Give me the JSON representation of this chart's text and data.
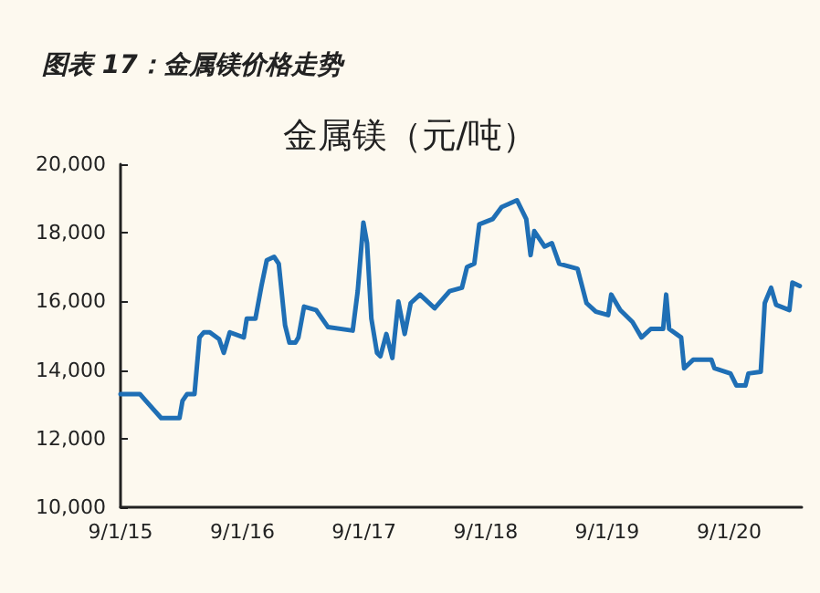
{
  "chart_data": {
    "type": "line",
    "title": "图表 17：金属镁价格走势",
    "subtitle": "金属镁（元/吨）",
    "x": [
      "2015-09-01",
      "2015-10-29",
      "2015-11-16",
      "2016-01-01",
      "2016-02-25",
      "2016-03-05",
      "2016-03-19",
      "2016-04-10",
      "2016-04-25",
      "2016-05-08",
      "2016-05-26",
      "2016-06-23",
      "2016-07-07",
      "2016-07-25",
      "2016-09-05",
      "2016-09-14",
      "2016-10-10",
      "2016-10-28",
      "2016-11-13",
      "2016-12-05",
      "2016-12-19",
      "2017-01-07",
      "2017-01-20",
      "2017-02-07",
      "2017-02-16",
      "2017-03-05",
      "2017-04-10",
      "2017-05-16",
      "2017-07-29",
      "2017-08-13",
      "2017-08-30",
      "2017-09-10",
      "2017-09-23",
      "2017-10-10",
      "2017-10-20",
      "2017-11-07",
      "2017-11-25",
      "2017-12-13",
      "2018-01-01",
      "2018-01-19",
      "2018-02-16",
      "2018-04-01",
      "2018-05-16",
      "2018-06-22",
      "2018-07-07",
      "2018-07-29",
      "2018-08-13",
      "2018-09-22",
      "2018-10-19",
      "2018-12-04",
      "2019-01-01",
      "2019-01-14",
      "2019-01-25",
      "2019-02-25",
      "2019-03-19",
      "2019-04-10",
      "2019-06-04",
      "2019-07-01",
      "2019-07-29",
      "2019-09-04",
      "2019-09-13",
      "2019-10-10",
      "2019-11-16",
      "2019-12-13",
      "2020-01-10",
      "2020-02-16",
      "2020-02-25",
      "2020-03-05",
      "2020-04-10",
      "2020-04-19",
      "2020-05-16",
      "2020-07-10",
      "2020-07-19",
      "2020-09-05",
      "2020-09-23",
      "2020-10-20",
      "2020-10-29",
      "2020-12-05",
      "2020-12-17",
      "2021-01-05",
      "2021-01-20",
      "2021-03-01",
      "2021-03-10",
      "2021-04-01"
    ],
    "series": [
      {
        "color": "#1f6fb5",
        "values": [
          13300,
          13300,
          13100,
          12600,
          12600,
          13100,
          13300,
          13300,
          14950,
          15100,
          15100,
          14900,
          14500,
          15100,
          14950,
          15500,
          15500,
          16450,
          17200,
          17300,
          17100,
          15300,
          14800,
          14800,
          14950,
          15850,
          15750,
          15250,
          15150,
          16300,
          18300,
          17700,
          15500,
          14500,
          14400,
          15050,
          14350,
          16000,
          15050,
          15950,
          16200,
          15800,
          16300,
          16400,
          17000,
          17100,
          18250,
          18400,
          18750,
          18950,
          18400,
          17350,
          18050,
          17600,
          17700,
          17100,
          16950,
          15950,
          15700,
          15600,
          16200,
          15750,
          15400,
          14950,
          15200,
          15200,
          16200,
          15200,
          14950,
          14050,
          14300,
          14300,
          14050,
          13900,
          13550,
          13550,
          13900,
          13950,
          15950,
          16400,
          15900,
          15750,
          16550,
          16450
        ]
      }
    ],
    "xlim": [
      "2015-09-01",
      "2021-04-07"
    ],
    "xticks": [
      {
        "value": "2015-09-01",
        "label": "9/1/15"
      },
      {
        "value": "2016-09-01",
        "label": "9/1/16"
      },
      {
        "value": "2017-09-01",
        "label": "9/1/17"
      },
      {
        "value": "2018-09-01",
        "label": "9/1/18"
      },
      {
        "value": "2019-09-01",
        "label": "9/1/19"
      },
      {
        "value": "2020-09-01",
        "label": "9/1/20"
      }
    ],
    "ylim": [
      10000,
      20000
    ],
    "yticks": [
      {
        "value": 10000,
        "label": "10,000"
      },
      {
        "value": 12000,
        "label": "12,000"
      },
      {
        "value": 14000,
        "label": "14,000"
      },
      {
        "value": 16000,
        "label": "16,000"
      },
      {
        "value": 18000,
        "label": "18,000"
      },
      {
        "value": 20000,
        "label": "20,000"
      }
    ],
    "grid": false,
    "marker": "none",
    "line_style": "solid"
  }
}
